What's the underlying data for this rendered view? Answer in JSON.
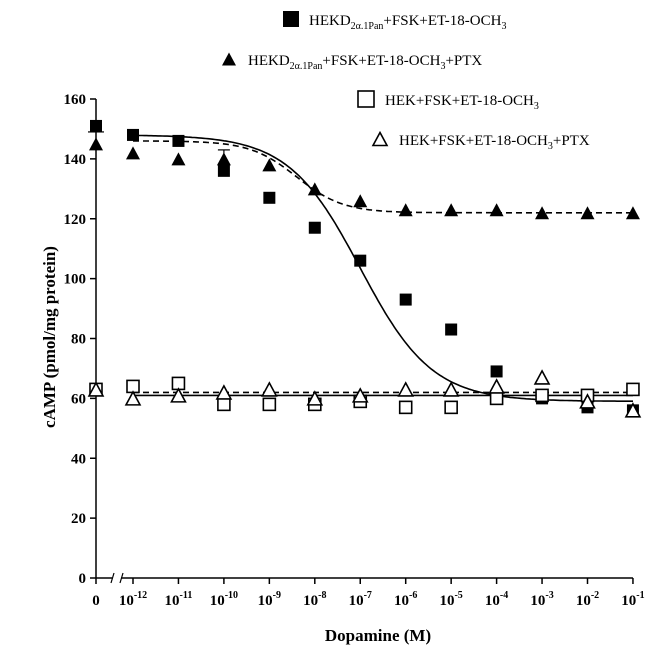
{
  "chart_data": {
    "type": "scatter",
    "xlabel": "Dopamine (M)",
    "ylabel": "cAMP (pmol/mg protein)",
    "ylim": [
      0,
      160
    ],
    "yticks": [
      0,
      20,
      40,
      60,
      80,
      100,
      120,
      140,
      160
    ],
    "x_ticks": [
      {
        "base": "0",
        "exp": ""
      },
      {
        "base": "10",
        "exp": "-12"
      },
      {
        "base": "10",
        "exp": "-11"
      },
      {
        "base": "10",
        "exp": "-10"
      },
      {
        "base": "10",
        "exp": "-9"
      },
      {
        "base": "10",
        "exp": "-8"
      },
      {
        "base": "10",
        "exp": "-7"
      },
      {
        "base": "10",
        "exp": "-6"
      },
      {
        "base": "10",
        "exp": "-5"
      },
      {
        "base": "10",
        "exp": "-4"
      },
      {
        "base": "10",
        "exp": "-3"
      },
      {
        "base": "10",
        "exp": "-2"
      },
      {
        "base": "10",
        "exp": "-1"
      }
    ],
    "x_scale": "log10 with axis break before 10^-12; first point at 0",
    "legend_position": "top-right",
    "series": [
      {
        "label_parts": [
          {
            "text": "HEKD",
            "sub": false
          },
          {
            "text": "2α.1Pan",
            "sub": true
          },
          {
            "text": "+FSK+ET-18-OCH",
            "sub": false
          },
          {
            "text": "3",
            "sub": true
          }
        ],
        "marker": "filled-square",
        "fit": "solid",
        "zero_value": 151,
        "x": [
          -12,
          -11,
          -10,
          -9,
          -8,
          -7,
          -6,
          -5,
          -4,
          -3,
          -2,
          -1
        ],
        "y": [
          148,
          146,
          136,
          127,
          117,
          106,
          93,
          83,
          69,
          60,
          57,
          56
        ],
        "fit_params": {
          "top": 148,
          "bottom": 59,
          "log_ec50": -7.0,
          "slope": 0.55
        }
      },
      {
        "label_parts": [
          {
            "text": "HEKD",
            "sub": false
          },
          {
            "text": "2α.1Pan",
            "sub": true
          },
          {
            "text": "+FSK+ET-18-OCH",
            "sub": false
          },
          {
            "text": "3",
            "sub": true
          },
          {
            "text": "+PTX",
            "sub": false
          }
        ],
        "marker": "filled-triangle",
        "fit": "dashed",
        "zero_value": 145,
        "x": [
          -12,
          -11,
          -10,
          -9,
          -8,
          -7,
          -6,
          -5,
          -4,
          -3,
          -2,
          -1
        ],
        "y": [
          142,
          140,
          140,
          138,
          130,
          126,
          123,
          123,
          123,
          122,
          122,
          122
        ],
        "fit_params": {
          "top": 146,
          "bottom": 122,
          "log_ec50": -8.4,
          "slope": 0.85
        }
      },
      {
        "label_parts": [
          {
            "text": "HEK+FSK+ET-18-OCH",
            "sub": false
          },
          {
            "text": "3",
            "sub": true
          }
        ],
        "marker": "open-square",
        "fit": "solid",
        "zero_value": 63,
        "x": [
          -12,
          -11,
          -10,
          -9,
          -8,
          -7,
          -6,
          -5,
          -4,
          -3,
          -2,
          -1
        ],
        "y": [
          64,
          65,
          58,
          58,
          58,
          59,
          57,
          57,
          60,
          61,
          61,
          63
        ],
        "fit_params": {
          "flat": 61
        }
      },
      {
        "label_parts": [
          {
            "text": "HEK+FSK+ET-18-OCH",
            "sub": false
          },
          {
            "text": "3",
            "sub": true
          },
          {
            "text": "+PTX",
            "sub": false
          }
        ],
        "marker": "open-triangle",
        "fit": "dashed",
        "zero_value": 63,
        "x": [
          -12,
          -11,
          -10,
          -9,
          -8,
          -7,
          -6,
          -5,
          -4,
          -3,
          -2,
          -1
        ],
        "y": [
          60,
          61,
          62,
          63,
          60,
          61,
          63,
          63,
          64,
          67,
          59,
          56
        ],
        "fit_params": {
          "flat": 62
        }
      }
    ]
  }
}
